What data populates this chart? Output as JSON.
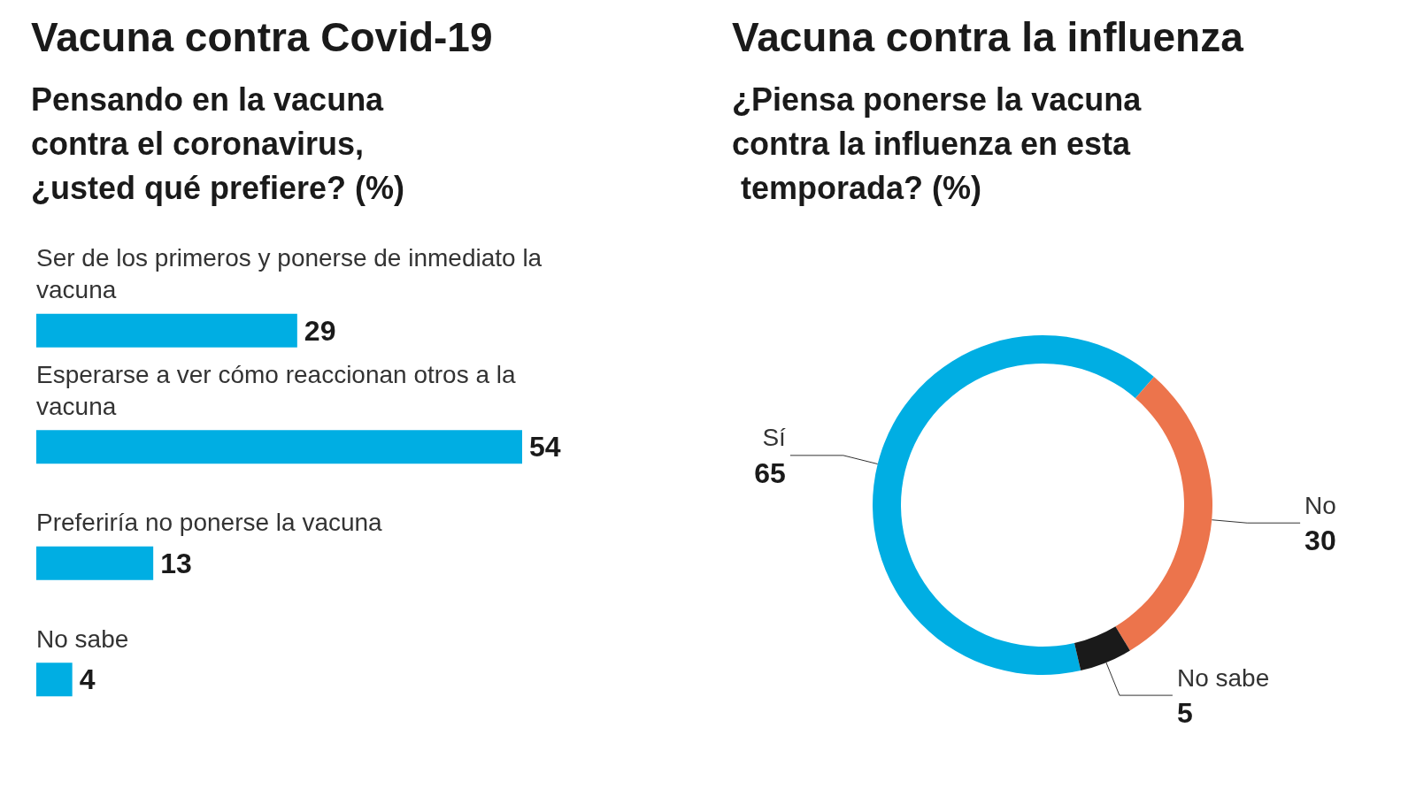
{
  "chart_data": [
    {
      "type": "bar",
      "orientation": "horizontal",
      "title": "Vacuna contra Covid-19",
      "subtitle": "Pensando en la vacuna contra el coronavirus, ¿usted qué prefiere? (%)",
      "categories": [
        "Ser de los primeros y ponerse de inmediato la vacuna",
        "Esperarse a ver cómo reaccionan otros a la vacuna",
        "Preferiría no ponerse la vacuna",
        "No sabe"
      ],
      "values": [
        29,
        54,
        13,
        4
      ],
      "color": "#00aee3",
      "data_labels": true
    },
    {
      "type": "donut",
      "title": "Vacuna contra la influenza",
      "subtitle": "¿Piensa ponerse la vacuna contra la influenza en esta temporada? (%)",
      "categories": [
        "Sí",
        "No",
        "No sabe"
      ],
      "values": [
        65,
        30,
        5
      ],
      "colors": [
        "#00aee3",
        "#ec744c",
        "#1a1a1a"
      ],
      "data_labels": true
    }
  ]
}
